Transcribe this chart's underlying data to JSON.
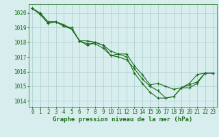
{
  "title": "Graphe pression niveau de la mer (hPa)",
  "background_color": "#d8eeee",
  "grid_color": "#aacccc",
  "line_color": "#1a6b1a",
  "marker_color": "#1a6b1a",
  "xlim": [
    -0.5,
    23.5
  ],
  "ylim": [
    1013.6,
    1020.6
  ],
  "yticks": [
    1014,
    1015,
    1016,
    1017,
    1018,
    1019,
    1020
  ],
  "xticks": [
    0,
    1,
    2,
    3,
    4,
    5,
    6,
    7,
    8,
    9,
    10,
    11,
    12,
    13,
    14,
    15,
    16,
    17,
    18,
    19,
    20,
    21,
    22,
    23
  ],
  "series": [
    [
      1020.3,
      1020.0,
      1019.4,
      1019.4,
      1019.1,
      1019.0,
      1018.1,
      1017.9,
      1017.9,
      1017.6,
      1017.1,
      1017.2,
      1017.2,
      1016.4,
      1015.8,
      1015.1,
      1015.2,
      1015.0,
      1014.8,
      1014.9,
      1015.2,
      1015.8,
      1015.9,
      1015.9
    ],
    [
      1020.3,
      1019.9,
      1019.3,
      1019.4,
      1019.1,
      1018.9,
      1018.1,
      1017.8,
      1018.0,
      1017.8,
      1017.1,
      1017.0,
      1016.8,
      1016.2,
      1015.5,
      1015.0,
      1014.7,
      1014.2,
      1014.3,
      1014.9,
      1014.9,
      1015.2,
      1015.9,
      1015.9
    ],
    [
      1020.3,
      1019.9,
      1019.3,
      1019.4,
      1019.2,
      1018.9,
      1018.1,
      1018.1,
      1018.0,
      1017.8,
      1017.4,
      1017.2,
      1017.0,
      1015.9,
      1015.2,
      1014.6,
      1014.2,
      1014.2,
      1014.3,
      1014.9,
      1015.1,
      1015.3,
      1015.9,
      1015.9
    ]
  ],
  "tick_fontsize": 5.5,
  "label_fontsize": 6.5
}
